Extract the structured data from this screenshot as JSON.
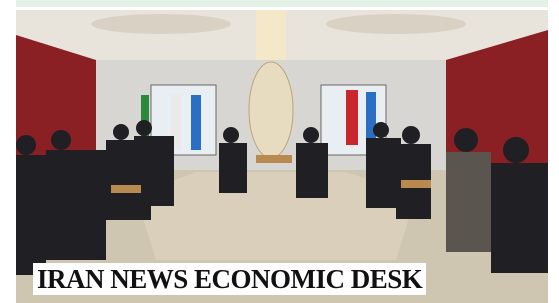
{
  "caption": "IRAN NEWS ECONOMIC DESK"
}
